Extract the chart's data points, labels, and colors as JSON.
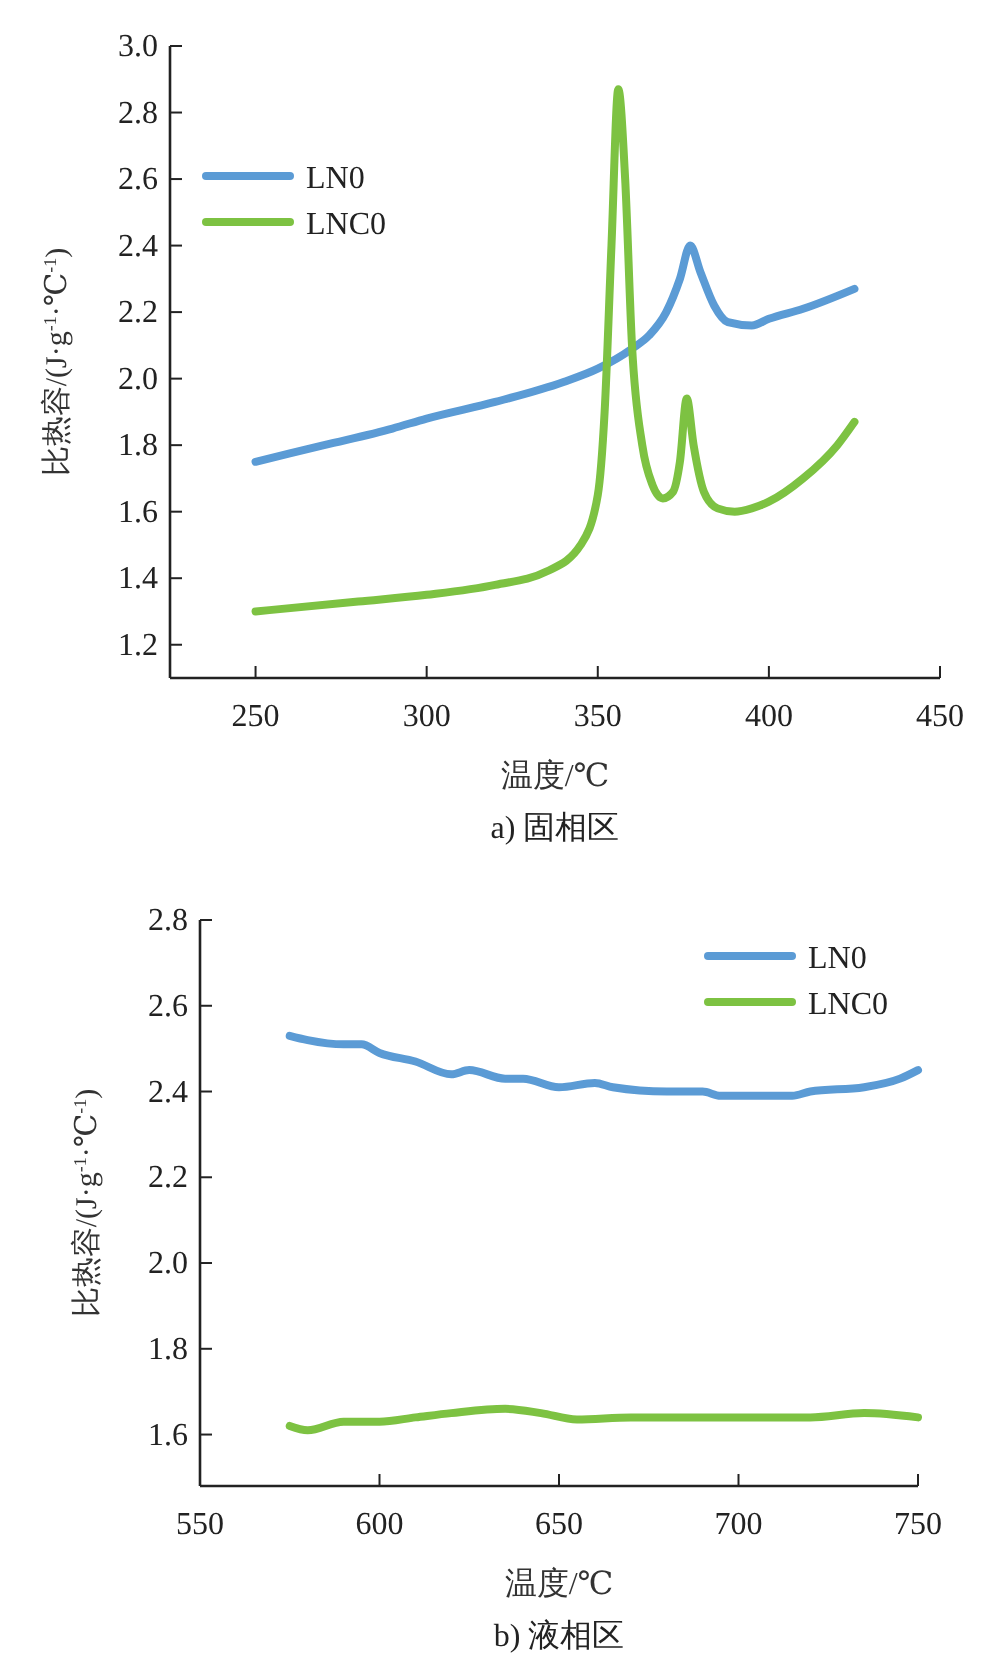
{
  "chart_data": [
    {
      "type": "line",
      "title": "a) 固相区",
      "xlabel": "温度/℃",
      "ylabel": "比热容/(J·g$^{-1}$·℃$^{-1}$)",
      "xlim": [
        225,
        450
      ],
      "xticks": [
        250,
        300,
        350,
        400,
        450
      ],
      "ylim": [
        1.1,
        3.0
      ],
      "yticks": [
        {
          "value": 1.2,
          "label": "1.2"
        },
        {
          "value": 1.4,
          "label": "1.4"
        },
        {
          "value": 1.6,
          "label": "1.6"
        },
        {
          "value": 1.8,
          "label": "1.8"
        },
        {
          "value": 2.0,
          "label": "2.0"
        },
        {
          "value": 2.2,
          "label": "2.2"
        },
        {
          "value": 2.4,
          "label": "2.4"
        },
        {
          "value": 2.6,
          "label": "2.6"
        },
        {
          "value": 2.8,
          "label": "2.8"
        },
        {
          "value": 3.0,
          "label": "3.0"
        }
      ],
      "grid": false,
      "legend": "top left",
      "marker": "none",
      "line_style": "solid",
      "series": [
        {
          "name": "LN0",
          "color": "#5b9bd5",
          "x": [
            250,
            270,
            290,
            300,
            320,
            340,
            350,
            360,
            365,
            370,
            374,
            377,
            380,
            384,
            388,
            395,
            400,
            410,
            425
          ],
          "values": [
            1.75,
            1.8,
            1.85,
            1.88,
            1.93,
            1.99,
            2.03,
            2.09,
            2.13,
            2.2,
            2.3,
            2.4,
            2.32,
            2.22,
            2.17,
            2.16,
            2.18,
            2.21,
            2.27
          ]
        },
        {
          "name": "LNC0",
          "color": "#7dc242",
          "x": [
            250,
            280,
            300,
            320,
            335,
            345,
            350,
            352,
            354,
            356,
            358,
            360,
            363,
            366,
            369,
            372,
            374,
            376,
            378,
            381,
            385,
            390,
            395,
            400,
            410,
            420,
            425
          ],
          "values": [
            1.3,
            1.33,
            1.35,
            1.38,
            1.42,
            1.5,
            1.65,
            1.9,
            2.4,
            2.87,
            2.6,
            2.1,
            1.8,
            1.68,
            1.64,
            1.66,
            1.75,
            1.94,
            1.8,
            1.66,
            1.61,
            1.6,
            1.61,
            1.63,
            1.7,
            1.8,
            1.87
          ]
        }
      ]
    },
    {
      "type": "line",
      "title": "b) 液相区",
      "xlabel": "温度/℃",
      "ylabel": "比热容/(J·g$^{-1}$·℃$^{-1}$)",
      "xlim": [
        550,
        750
      ],
      "xticks": [
        550,
        600,
        650,
        700,
        750
      ],
      "ylim": [
        1.48,
        2.8
      ],
      "yticks": [
        {
          "value": 1.6,
          "label": "1.6"
        },
        {
          "value": 1.8,
          "label": "1.8"
        },
        {
          "value": 2.0,
          "label": "2.0"
        },
        {
          "value": 2.2,
          "label": "2.2"
        },
        {
          "value": 2.4,
          "label": "2.4"
        },
        {
          "value": 2.6,
          "label": "2.6"
        },
        {
          "value": 2.8,
          "label": "2.8"
        }
      ],
      "grid": false,
      "legend": "top right",
      "marker": "none",
      "line_style": "solid",
      "series": [
        {
          "name": "LN0",
          "color": "#5b9bd5",
          "x": [
            575,
            580,
            590,
            595,
            600,
            610,
            620,
            625,
            635,
            640,
            650,
            660,
            665,
            680,
            690,
            695,
            705,
            715,
            720,
            735,
            745,
            750
          ],
          "values": [
            2.53,
            2.52,
            2.51,
            2.51,
            2.49,
            2.47,
            2.44,
            2.45,
            2.43,
            2.43,
            2.41,
            2.42,
            2.41,
            2.4,
            2.4,
            2.39,
            2.39,
            2.39,
            2.4,
            2.41,
            2.43,
            2.45
          ]
        },
        {
          "name": "LNC0",
          "color": "#7dc242",
          "x": [
            575,
            580,
            590,
            600,
            610,
            620,
            635,
            645,
            655,
            670,
            700,
            720,
            735,
            750
          ],
          "values": [
            1.62,
            1.61,
            1.63,
            1.63,
            1.64,
            1.65,
            1.66,
            1.65,
            1.635,
            1.64,
            1.64,
            1.64,
            1.65,
            1.64
          ]
        }
      ]
    }
  ]
}
